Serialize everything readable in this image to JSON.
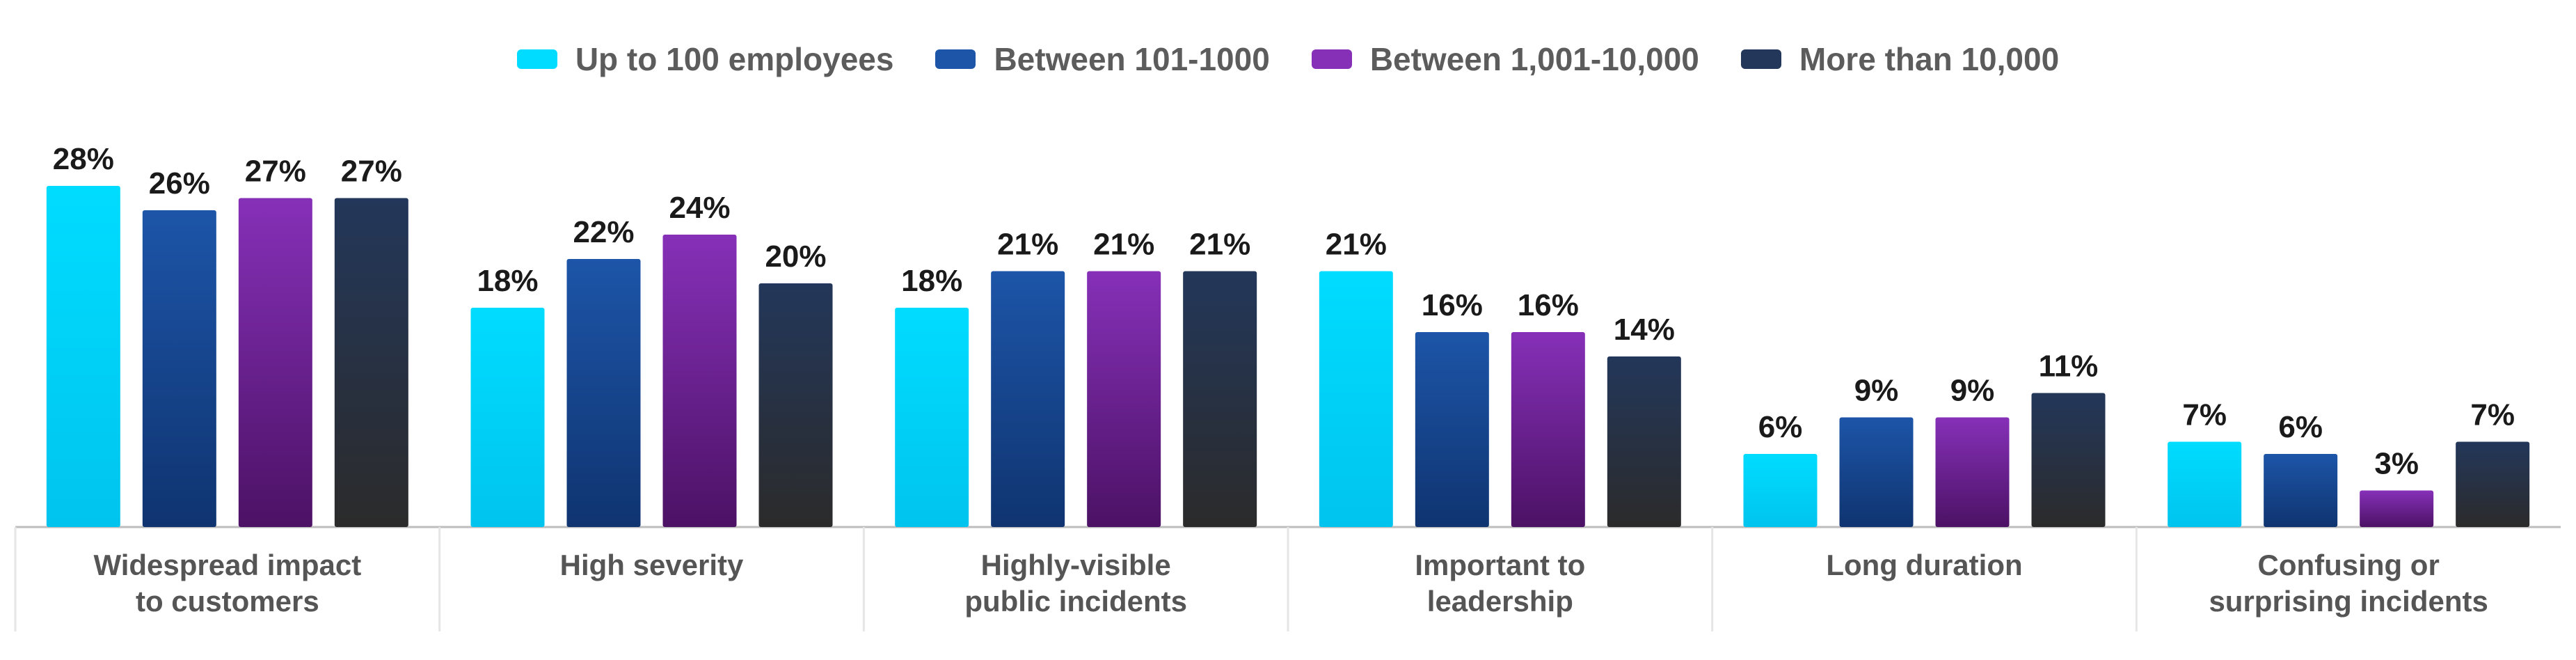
{
  "chart_data": {
    "type": "bar",
    "categories": [
      [
        "Widespread impact",
        "to customers"
      ],
      [
        "High severity"
      ],
      [
        "Highly-visible",
        "public incidents"
      ],
      [
        "Important to",
        "leadership"
      ],
      [
        "Long duration"
      ],
      [
        "Confusing or",
        "surprising incidents"
      ]
    ],
    "series": [
      {
        "name": "Up to 100 employees",
        "values": [
          28,
          18,
          18,
          21,
          6,
          7
        ],
        "color": "#00dcff",
        "color_dark": "#00c4ee"
      },
      {
        "name": "Between 101-1000",
        "values": [
          26,
          22,
          21,
          16,
          9,
          6
        ],
        "color": "#1d55a8",
        "color_dark": "#0f3470"
      },
      {
        "name": "Between 1,001-10,000",
        "values": [
          27,
          24,
          21,
          16,
          9,
          3
        ],
        "color": "#8630b8",
        "color_dark": "#4c1265"
      },
      {
        "name": "More than 10,000",
        "values": [
          27,
          20,
          21,
          14,
          11,
          7
        ],
        "color": "#23375a",
        "color_dark": "#2b2b2b"
      }
    ],
    "value_suffix": "%",
    "ylim": [
      0,
      30
    ],
    "legend_position": "top-center",
    "grid": false
  }
}
